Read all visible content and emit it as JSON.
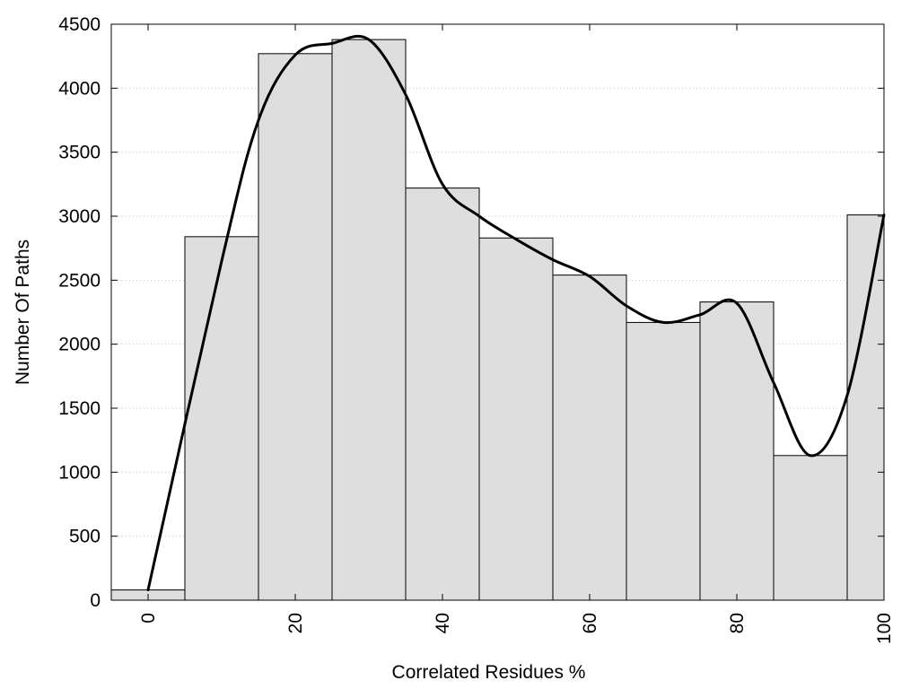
{
  "chart_data": {
    "type": "bar",
    "title": "",
    "xlabel": "Correlated Residues %",
    "ylabel": "Number Of Paths",
    "xlim": [
      -5,
      100
    ],
    "ylim": [
      0,
      4500
    ],
    "bin_width": 10,
    "grid": "horizontal dotted",
    "bar_color": "#dedede",
    "curve_color": "#000000",
    "bins": [
      {
        "center": 0,
        "value": 80
      },
      {
        "center": 10,
        "value": 2840
      },
      {
        "center": 20,
        "value": 4270
      },
      {
        "center": 30,
        "value": 4380
      },
      {
        "center": 40,
        "value": 3220
      },
      {
        "center": 50,
        "value": 2830
      },
      {
        "center": 60,
        "value": 2540
      },
      {
        "center": 70,
        "value": 2170
      },
      {
        "center": 80,
        "value": 2330
      },
      {
        "center": 90,
        "value": 1130
      },
      {
        "center": 100,
        "value": 3010
      }
    ],
    "curve": [
      {
        "x": 0,
        "y": 80
      },
      {
        "x": 10,
        "y": 2650
      },
      {
        "x": 15,
        "y": 3750
      },
      {
        "x": 20,
        "y": 4260
      },
      {
        "x": 25,
        "y": 4350
      },
      {
        "x": 30,
        "y": 4380
      },
      {
        "x": 35,
        "y": 3950
      },
      {
        "x": 40,
        "y": 3250
      },
      {
        "x": 45,
        "y": 3000
      },
      {
        "x": 50,
        "y": 2820
      },
      {
        "x": 55,
        "y": 2660
      },
      {
        "x": 60,
        "y": 2530
      },
      {
        "x": 65,
        "y": 2300
      },
      {
        "x": 70,
        "y": 2170
      },
      {
        "x": 75,
        "y": 2230
      },
      {
        "x": 80,
        "y": 2320
      },
      {
        "x": 85,
        "y": 1700
      },
      {
        "x": 90,
        "y": 1130
      },
      {
        "x": 95,
        "y": 1600
      },
      {
        "x": 100,
        "y": 3010
      }
    ],
    "yticks": [
      0,
      500,
      1000,
      1500,
      2000,
      2500,
      3000,
      3500,
      4000,
      4500
    ],
    "xticks": [
      0,
      20,
      40,
      60,
      80,
      100
    ]
  }
}
